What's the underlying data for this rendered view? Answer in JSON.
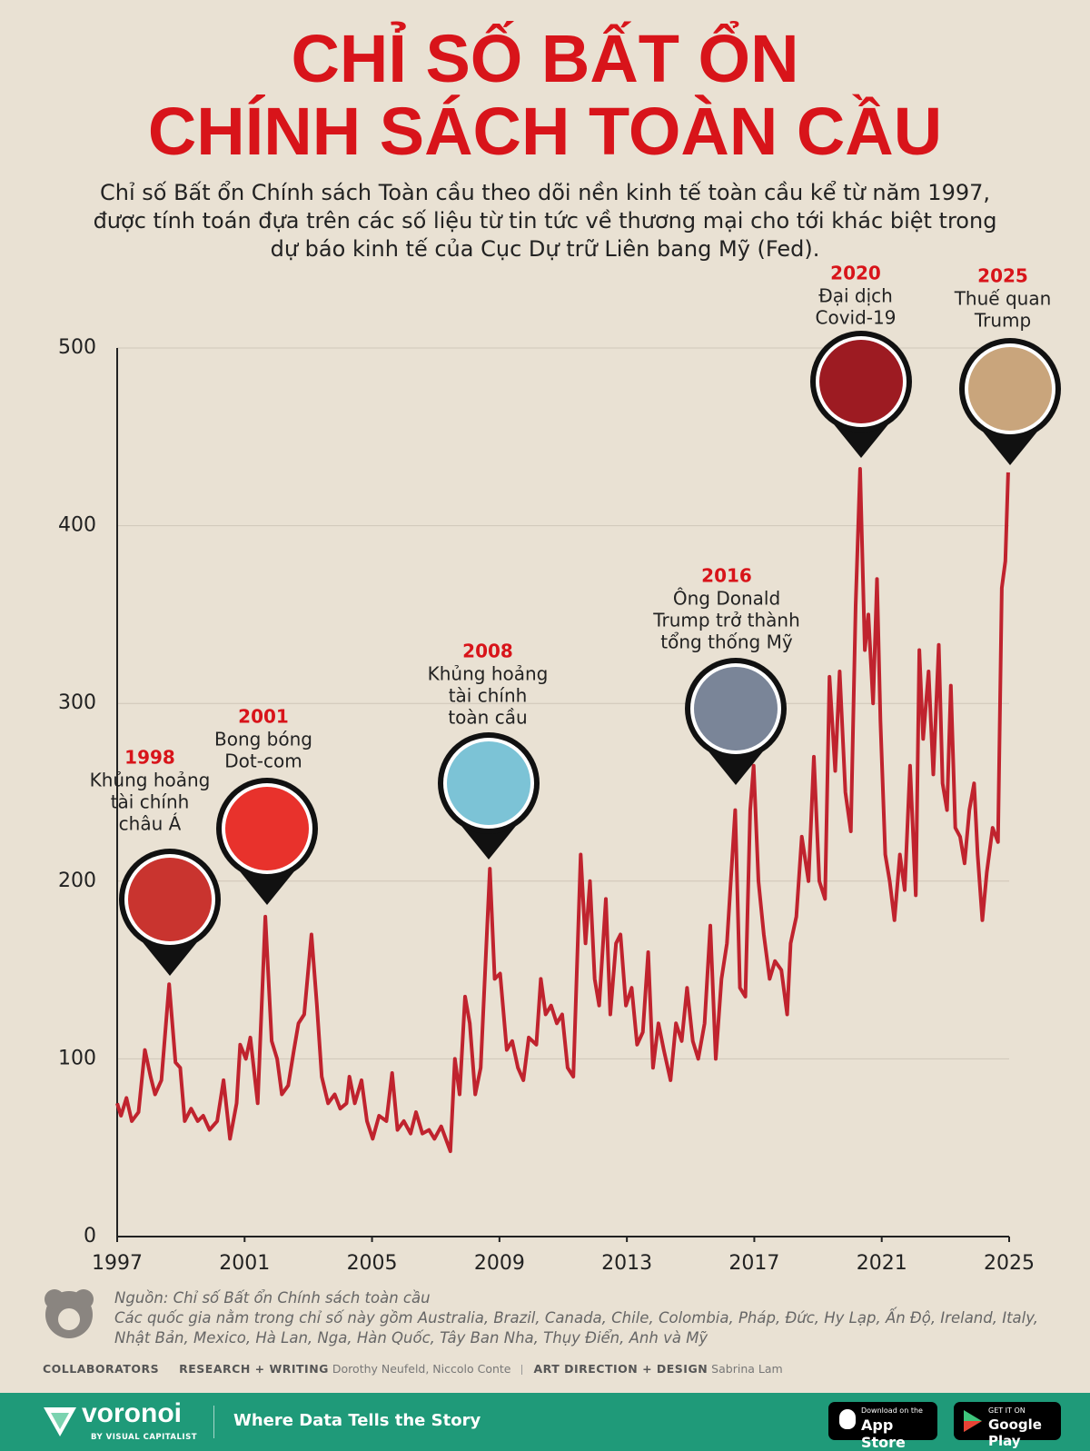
{
  "chart_data": {
    "type": "line",
    "title_lines": [
      "CHỈ SỐ BẤT ỔN",
      "CHÍNH SÁCH TOÀN CẦU"
    ],
    "subtitle_lines": [
      "Chỉ số Bất ổn Chính sách Toàn cầu theo dõi nền kinh tế toàn cầu kể từ năm 1997,",
      "được tính toán đựa trên các số liệu từ tin tức về thương mại cho tới khác biệt trong",
      "dự báo kinh tế của Cục Dự trữ Liên bang Mỹ (Fed)."
    ],
    "color": "#c0232e",
    "xlim": [
      1997,
      2025
    ],
    "xticks": [
      1997,
      2001,
      2005,
      2009,
      2013,
      2017,
      2021,
      2025
    ],
    "ylim": [
      0,
      500
    ],
    "yticks": [
      0,
      100,
      200,
      300,
      400,
      500
    ],
    "grid": true,
    "x": [
      1997.0,
      1997.12,
      1997.29,
      1997.46,
      1997.67,
      1997.87,
      1998.05,
      1998.19,
      1998.39,
      1998.63,
      1998.83,
      1998.98,
      1999.12,
      1999.32,
      1999.53,
      1999.7,
      1999.9,
      2000.14,
      2000.34,
      2000.54,
      2000.75,
      2000.86,
      2001.04,
      2001.18,
      2001.41,
      2001.65,
      2001.85,
      2002.02,
      2002.17,
      2002.37,
      2002.55,
      2002.69,
      2002.87,
      2003.1,
      2003.27,
      2003.42,
      2003.62,
      2003.83,
      2004.0,
      2004.2,
      2004.29,
      2004.46,
      2004.67,
      2004.84,
      2005.02,
      2005.22,
      2005.45,
      2005.63,
      2005.8,
      2006.0,
      2006.21,
      2006.38,
      2006.58,
      2006.79,
      2006.96,
      2007.17,
      2007.46,
      2007.6,
      2007.75,
      2007.92,
      2008.07,
      2008.24,
      2008.41,
      2008.7,
      2008.85,
      2009.02,
      2009.23,
      2009.4,
      2009.58,
      2009.75,
      2009.92,
      2010.16,
      2010.3,
      2010.45,
      2010.62,
      2010.8,
      2010.97,
      2011.14,
      2011.32,
      2011.55,
      2011.7,
      2011.84,
      2011.99,
      2012.13,
      2012.34,
      2012.48,
      2012.66,
      2012.8,
      2012.97,
      2013.15,
      2013.32,
      2013.5,
      2013.67,
      2013.82,
      2013.99,
      2014.16,
      2014.37,
      2014.54,
      2014.72,
      2014.89,
      2015.07,
      2015.24,
      2015.44,
      2015.62,
      2015.79,
      2015.97,
      2016.14,
      2016.4,
      2016.55,
      2016.72,
      2016.87,
      2016.98,
      2017.13,
      2017.3,
      2017.48,
      2017.65,
      2017.85,
      2018.03,
      2018.14,
      2018.32,
      2018.49,
      2018.7,
      2018.87,
      2019.04,
      2019.22,
      2019.36,
      2019.54,
      2019.68,
      2019.86,
      2020.03,
      2020.18,
      2020.32,
      2020.47,
      2020.58,
      2020.73,
      2020.85,
      2020.96,
      2021.11,
      2021.25,
      2021.4,
      2021.57,
      2021.72,
      2021.89,
      2022.07,
      2022.18,
      2022.3,
      2022.47,
      2022.62,
      2022.79,
      2022.91,
      2023.05,
      2023.17,
      2023.31,
      2023.46,
      2023.6,
      2023.75,
      2023.9,
      2024.01,
      2024.16,
      2024.3,
      2024.48,
      2024.65,
      2024.77,
      2024.88,
      2024.97
    ],
    "values": [
      75,
      68,
      78,
      65,
      70,
      105,
      90,
      80,
      88,
      142,
      98,
      95,
      65,
      72,
      65,
      68,
      60,
      65,
      88,
      55,
      75,
      108,
      100,
      112,
      75,
      180,
      110,
      100,
      80,
      85,
      105,
      120,
      125,
      170,
      130,
      90,
      75,
      80,
      72,
      75,
      90,
      75,
      88,
      65,
      55,
      68,
      65,
      92,
      60,
      65,
      58,
      70,
      58,
      60,
      55,
      62,
      48,
      100,
      80,
      135,
      120,
      80,
      95,
      207,
      145,
      148,
      105,
      110,
      95,
      88,
      112,
      108,
      145,
      125,
      130,
      120,
      125,
      95,
      90,
      215,
      165,
      200,
      145,
      130,
      190,
      125,
      165,
      170,
      130,
      140,
      108,
      115,
      160,
      95,
      120,
      105,
      88,
      120,
      110,
      140,
      110,
      100,
      120,
      175,
      100,
      145,
      165,
      240,
      140,
      135,
      240,
      265,
      200,
      170,
      145,
      155,
      150,
      125,
      165,
      180,
      225,
      200,
      270,
      200,
      190,
      315,
      262,
      318,
      250,
      228,
      355,
      432,
      330,
      350,
      300,
      370,
      290,
      215,
      200,
      178,
      215,
      195,
      265,
      192,
      330,
      280,
      318,
      260,
      333,
      255,
      240,
      310,
      230,
      225,
      210,
      240,
      255,
      215,
      178,
      205,
      230,
      222,
      365,
      380,
      430
    ],
    "annotations": [
      {
        "year": "1998",
        "lines": [
          "Khủng hoảng",
          "tài chính",
          "châu Á"
        ]
      },
      {
        "year": "2001",
        "lines": [
          "Bong bóng",
          "Dot-com"
        ]
      },
      {
        "year": "2008",
        "lines": [
          "Khủng hoảng",
          "tài chính",
          "toàn cầu"
        ]
      },
      {
        "year": "2016",
        "lines": [
          "Ông Donald",
          "Trump trở thành",
          "tổng thống Mỹ"
        ]
      },
      {
        "year": "2020",
        "lines": [
          "Đại dịch",
          "Covid-19"
        ]
      },
      {
        "year": "2025",
        "lines": [
          "Thuế quan",
          "Trump"
        ]
      }
    ]
  },
  "footer": {
    "source": "Nguồn: Chỉ số Bất ổn Chính sách toàn cầu",
    "note": "Các quốc gia nằm trong chỉ số này gồm Australia, Brazil, Canada, Chile, Colombia, Pháp, Đức, Hy Lạp, Ấn Độ, Ireland, Italy, Nhật Bản, Mexico, Hà Lan, Nga, Hàn Quốc, Tây Ban Nha, Thụy Điển, Anh và Mỹ",
    "collaborators": "COLLABORATORS",
    "research_label": "RESEARCH + WRITING",
    "research_names": "Dorothy Neufeld, Niccolo Conte",
    "design_label": "ART DIRECTION + DESIGN",
    "design_names": "Sabrina Lam",
    "brand": "voronoi",
    "brand_sub": "BY VISUAL CAPITALIST",
    "tagline": "Where Data Tells the Story",
    "appstore_small": "Download on the",
    "appstore": "App Store",
    "play_small": "GET IT ON",
    "play": "Google Play"
  }
}
